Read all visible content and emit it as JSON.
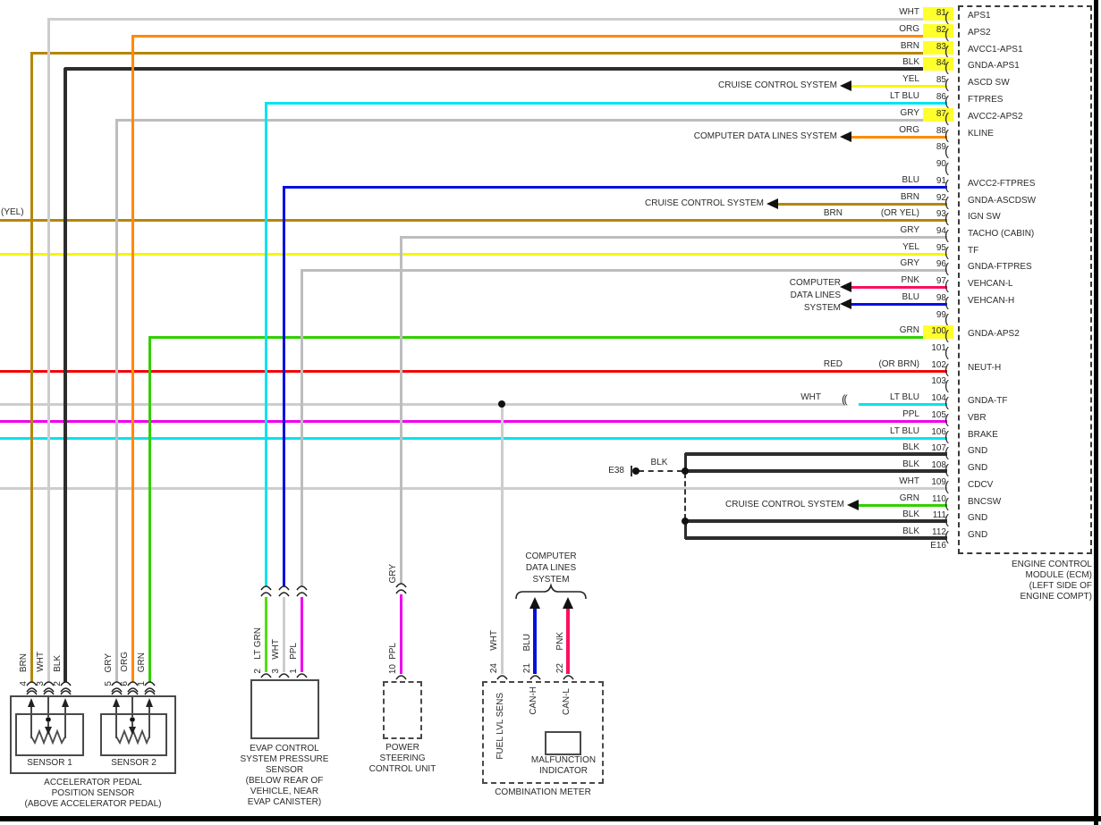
{
  "palette": {
    "WHT": "#cdcdcd",
    "GRY": "#bdbdbd",
    "ORG": "#ff8a00",
    "BRN": "#b5860b",
    "BLK": "#2d2d2d",
    "YEL": "#f6f600",
    "LT BLU": "#00e4f0",
    "BLU": "#0010e0",
    "GRN": "#30d000",
    "LT GRN": "#50e000",
    "PNK": "#fa1060",
    "RED": "#f00808",
    "PPL": "#ee00ee",
    "highlight": "#ffff2e",
    "ink": "#2b2b2b"
  },
  "pin_bracket": "(",
  "row104_connector": "((",
  "left_edge_note": "(YEL)",
  "e38": {
    "id": "E38",
    "wire": "BLK"
  },
  "ecm": {
    "connector_id": "E16",
    "caption_lines": [
      "ENGINE CONTROL",
      "MODULE (ECM)",
      "(LEFT SIDE OF",
      "ENGINE COMPT)"
    ],
    "pins": [
      {
        "num": "81",
        "wire": "WHT",
        "extra": "",
        "name": "APS1",
        "highlight": true
      },
      {
        "num": "82",
        "wire": "ORG",
        "extra": "",
        "name": "APS2",
        "highlight": true
      },
      {
        "num": "83",
        "wire": "BRN",
        "extra": "",
        "name": "AVCC1-APS1",
        "highlight": true
      },
      {
        "num": "84",
        "wire": "BLK",
        "extra": "",
        "name": "GNDA-APS1",
        "highlight": true
      },
      {
        "num": "85",
        "wire": "YEL",
        "extra": "",
        "name": "ASCD SW",
        "highlight": false
      },
      {
        "num": "86",
        "wire": "LT BLU",
        "extra": "",
        "name": "FTPRES",
        "highlight": false
      },
      {
        "num": "87",
        "wire": "GRY",
        "extra": "",
        "name": "AVCC2-APS2",
        "highlight": true
      },
      {
        "num": "88",
        "wire": "ORG",
        "extra": "",
        "name": "KLINE",
        "highlight": false
      },
      {
        "num": "89",
        "wire": "",
        "extra": "",
        "name": "",
        "highlight": false
      },
      {
        "num": "90",
        "wire": "",
        "extra": "",
        "name": "",
        "highlight": false
      },
      {
        "num": "91",
        "wire": "BLU",
        "extra": "",
        "name": "AVCC2-FTPRES",
        "highlight": false
      },
      {
        "num": "92",
        "wire": "BRN",
        "extra": "",
        "name": "GNDA-ASCDSW",
        "highlight": false
      },
      {
        "num": "93",
        "wire": "BRN",
        "extra": "(OR YEL)",
        "name": "IGN SW",
        "highlight": false
      },
      {
        "num": "94",
        "wire": "GRY",
        "extra": "",
        "name": "TACHO (CABIN)",
        "highlight": false
      },
      {
        "num": "95",
        "wire": "YEL",
        "extra": "",
        "name": "TF",
        "highlight": false
      },
      {
        "num": "96",
        "wire": "GRY",
        "extra": "",
        "name": "GNDA-FTPRES",
        "highlight": false
      },
      {
        "num": "97",
        "wire": "PNK",
        "extra": "",
        "name": "VEHCAN-L",
        "highlight": false
      },
      {
        "num": "98",
        "wire": "BLU",
        "extra": "",
        "name": "VEHCAN-H",
        "highlight": false
      },
      {
        "num": "99",
        "wire": "",
        "extra": "",
        "name": "",
        "highlight": false
      },
      {
        "num": "100",
        "wire": "GRN",
        "extra": "",
        "name": "GNDA-APS2",
        "highlight": true
      },
      {
        "num": "101",
        "wire": "",
        "extra": "",
        "name": "",
        "highlight": false
      },
      {
        "num": "102",
        "wire": "RED",
        "extra": "(OR BRN)",
        "name": "NEUT-H",
        "highlight": false
      },
      {
        "num": "103",
        "wire": "",
        "extra": "",
        "name": "",
        "highlight": false
      },
      {
        "num": "104",
        "wire": "WHT",
        "wire2": "LT BLU",
        "extra": "",
        "name": "GNDA-TF",
        "highlight": false
      },
      {
        "num": "105",
        "wire": "PPL",
        "extra": "",
        "name": "VBR",
        "highlight": false
      },
      {
        "num": "106",
        "wire": "LT BLU",
        "extra": "",
        "name": "BRAKE",
        "highlight": false
      },
      {
        "num": "107",
        "wire": "BLK",
        "extra": "",
        "name": "GND",
        "highlight": false
      },
      {
        "num": "108",
        "wire": "BLK",
        "extra": "",
        "name": "GND",
        "highlight": false
      },
      {
        "num": "109",
        "wire": "WHT",
        "extra": "",
        "name": "CDCV",
        "highlight": false
      },
      {
        "num": "110",
        "wire": "GRN",
        "extra": "",
        "name": "BNCSW",
        "highlight": false
      },
      {
        "num": "111",
        "wire": "BLK",
        "extra": "",
        "name": "GND",
        "highlight": false
      },
      {
        "num": "112",
        "wire": "BLK",
        "extra": "",
        "name": "GND",
        "highlight": false
      }
    ]
  },
  "system_labels": {
    "cruise": "CRUISE CONTROL SYSTEM",
    "cdl_inline": "COMPUTER DATA LINES SYSTEM",
    "cdl_block": [
      "COMPUTER",
      "DATA LINES",
      "SYSTEM"
    ]
  },
  "components": {
    "app": {
      "pins": [
        {
          "num": "4",
          "color": "BRN"
        },
        {
          "num": "3",
          "color": "WHT"
        },
        {
          "num": "2",
          "color": "BLK"
        },
        {
          "num": "5",
          "color": "GRY"
        },
        {
          "num": "6",
          "color": "ORG"
        },
        {
          "num": "1",
          "color": "GRN"
        }
      ],
      "sensor1": "SENSOR 1",
      "sensor2": "SENSOR 2",
      "caption": [
        "ACCELERATOR PEDAL",
        "POSITION SENSOR",
        "(ABOVE ACCELERATOR PEDAL)"
      ]
    },
    "evap": {
      "pins": [
        {
          "num": "2",
          "color": "LT GRN"
        },
        {
          "num": "3",
          "color": "WHT"
        },
        {
          "num": "1",
          "color": "PPL"
        }
      ],
      "caption": [
        "EVAP CONTROL",
        "SYSTEM PRESSURE",
        "SENSOR",
        "(BELOW REAR OF",
        "VEHICLE, NEAR",
        "EVAP CANISTER)"
      ]
    },
    "psu": {
      "upper_wire": "GRY",
      "pins": [
        {
          "num": "10",
          "color": "PPL"
        }
      ],
      "caption": [
        "POWER",
        "STEERING",
        "CONTROL UNIT"
      ]
    },
    "combo": {
      "pins": [
        {
          "num": "24",
          "color": "WHT"
        },
        {
          "num": "21",
          "color": "BLU"
        },
        {
          "num": "22",
          "color": "PNK"
        }
      ],
      "terminals": [
        "FUEL LVL SENS",
        "CAN-H",
        "CAN-L"
      ],
      "mil": [
        "MALFUNCTION",
        "INDICATOR"
      ],
      "caption": "COMBINATION METER",
      "system_block": [
        "COMPUTER",
        "DATA LINES",
        "SYSTEM"
      ]
    }
  }
}
